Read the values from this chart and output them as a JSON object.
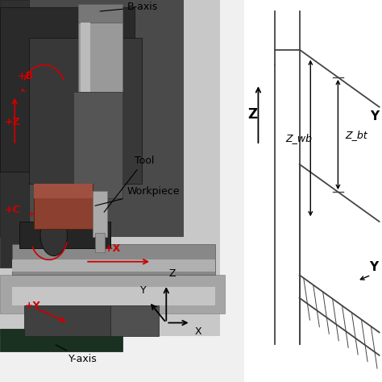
{
  "bg_color": "#ffffff",
  "red_color": "#cc0000",
  "black_color": "#000000",
  "labels": {
    "B_axis": "B-axis",
    "Tool": "Tool",
    "Workpiece": "Workpiece",
    "Y_axis": "Y-axis",
    "pB": "+B",
    "pZ": "+Z",
    "pC": "+C",
    "pX": "+X",
    "pY": "+Y",
    "Z_wb": "Z_wb",
    "Z_bt": "Z_bt",
    "Z": "Z",
    "Y_top": "Y",
    "Y_bot": "Y",
    "cZ": "Z",
    "cY": "Y",
    "cX": "X"
  },
  "photo_colors": {
    "bg_light": "#e8e8e8",
    "bg_dark": "#5a5a5a",
    "machine_dark": "#2a2a2a",
    "machine_mid": "#4a4a4a",
    "machine_light": "#7a7a7a",
    "rail_silver": "#b8b8b8",
    "rail_light": "#d0d0d0",
    "stage_dark": "#3a3535",
    "pcb_green": "#1a3a1a",
    "workpiece_brown": "#7a3010",
    "caxis_dark": "#252525",
    "spindle_silver": "#909090",
    "motor_silver": "#aaaaaa"
  },
  "schematic_line_color": "#444444",
  "fs_label": 9,
  "fs_small": 8,
  "fs_axis": 11
}
